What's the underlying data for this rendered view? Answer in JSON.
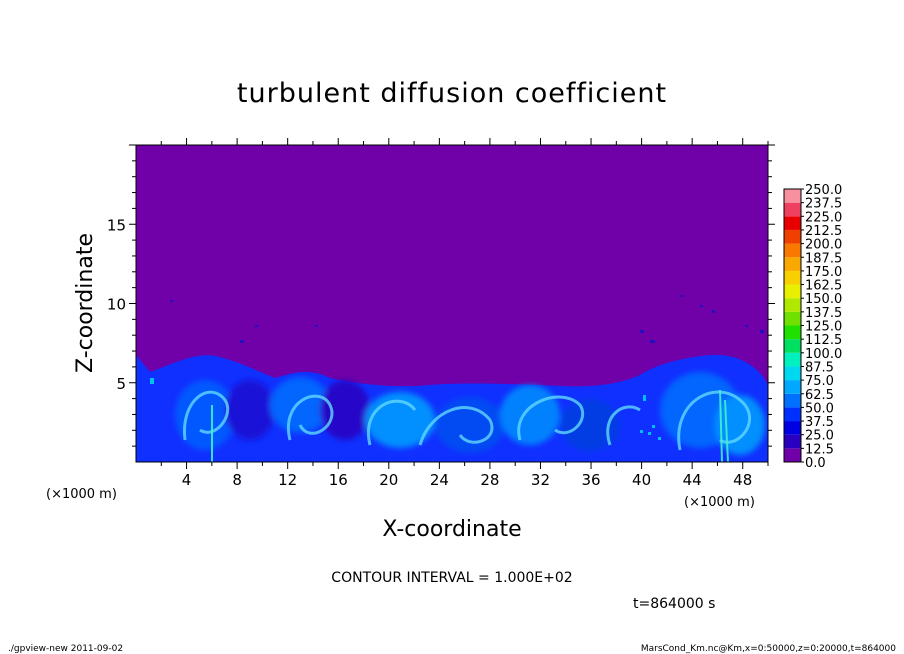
{
  "chart_data": {
    "type": "heatmap",
    "title": "turbulent diffusion coefficient",
    "xlabel": "X-coordinate",
    "ylabel": "Z-coordinate",
    "xunit": "(×1000 m)",
    "yunit": "(×1000 m)",
    "xlim": [
      0,
      50
    ],
    "ylim": [
      0,
      20
    ],
    "xticks": [
      4,
      8,
      12,
      16,
      20,
      24,
      28,
      32,
      36,
      40,
      44,
      48
    ],
    "yticks": [
      5,
      10,
      15
    ],
    "colorbar": {
      "levels": [
        "0.0",
        "12.5",
        "25.0",
        "37.5",
        "50.0",
        "62.5",
        "75.0",
        "87.5",
        "100.0",
        "112.5",
        "125.0",
        "137.5",
        "150.0",
        "162.5",
        "175.0",
        "187.5",
        "200.0",
        "212.5",
        "225.0",
        "237.5",
        "250.0"
      ],
      "colors": [
        "#7000a8",
        "#2a00c0",
        "#0000e0",
        "#0030ff",
        "#0070ff",
        "#00a8ff",
        "#00d8f0",
        "#00f0c0",
        "#00e060",
        "#20e000",
        "#70e000",
        "#b0e800",
        "#e8f000",
        "#f8d000",
        "#f8a800",
        "#f87800",
        "#f04000",
        "#e80000",
        "#f04060",
        "#f890a0"
      ]
    },
    "contour_interval": "CONTOUR INTERVAL = 1.000E+02",
    "time": "t=864000  s"
  },
  "footer": {
    "left": "./gpview-new  2011-09-02",
    "right": "MarsCond_Km.nc@Km,x=0:50000,z=0:20000,t=864000"
  }
}
